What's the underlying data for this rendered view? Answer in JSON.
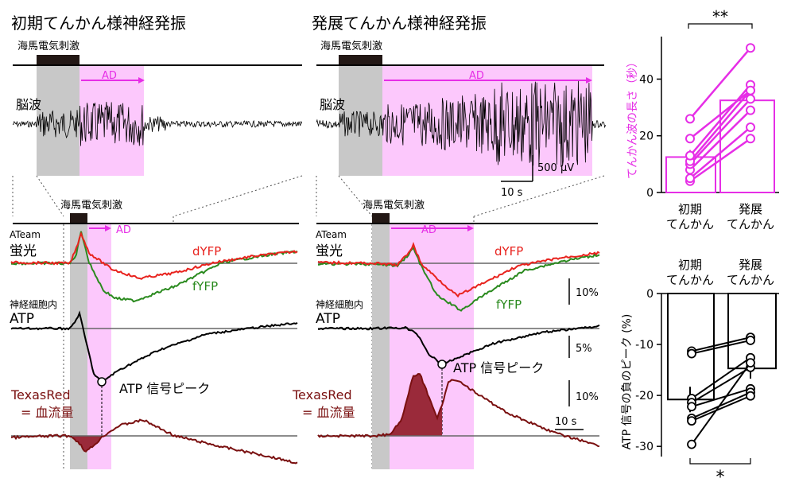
{
  "panels": {
    "early": {
      "title": "初期てんかん様神経発振",
      "stim_label": "海馬電気刺激",
      "ad_label": "AD",
      "eeg_label": "脳波",
      "zoom_stim_label": "海馬電気刺激",
      "zoom_ad_label": "AD",
      "ateam_label": "ATeam",
      "fluor_label": "蛍光",
      "dyfp_label": "dYFP",
      "fyfp_label": "fYFP",
      "neuron_label": "神経細胞内",
      "atp_label": "ATP",
      "atp_peak_label": "ATP 信号ピーク",
      "texasred_label": "TexasRed",
      "bloodflow_label": "= 血流量"
    },
    "late": {
      "title": "発展てんかん様神経発振",
      "stim_label": "海馬電気刺激",
      "ad_label": "AD",
      "eeg_label": "脳波",
      "zoom_stim_label": "海馬電気刺激",
      "zoom_ad_label": "AD",
      "ateam_label": "ATeam",
      "fluor_label": "蛍光",
      "dyfp_label": "dYFP",
      "fyfp_label": "fYFP",
      "neuron_label": "神経細胞内",
      "atp_label": "ATP",
      "atp_peak_label": "ATP 信号ピーク",
      "texasred_label": "TexasRed",
      "bloodflow_label": "= 血流量"
    }
  },
  "scalebars": {
    "eeg_voltage": "500 μV",
    "eeg_time": "10 s",
    "fluor_pct": "10%",
    "atp_pct": "5%",
    "texasred_pct": "10%",
    "zoom_time": "10 s"
  },
  "colors": {
    "magenta": "#e62ee6",
    "ad_shade": "#fcc8fc",
    "stim_shade": "#c8c8c8",
    "dyfp": "#e8231e",
    "fyfp": "#2a8a1e",
    "texasred": "#7a1010",
    "texasred_fill": "#9a2a3a"
  },
  "chart_data": [
    {
      "type": "bar",
      "ylabel": "てんかん波の長さ（秒）",
      "categories": [
        "初期\nてんかん",
        "発展\nてんかん"
      ],
      "category_lines": [
        [
          "初期",
          "てんかん"
        ],
        [
          "発展",
          "てんかん"
        ]
      ],
      "values": [
        12.5,
        32.5
      ],
      "error": [
        2.5,
        0
      ],
      "ylim": [
        0,
        55
      ],
      "yticks": [
        0,
        20,
        40
      ],
      "significance": "**",
      "paired_points": [
        [
          4,
          19
        ],
        [
          5,
          23
        ],
        [
          8,
          29
        ],
        [
          10,
          33
        ],
        [
          11,
          36
        ],
        [
          13,
          38
        ],
        [
          19,
          36
        ],
        [
          26,
          51
        ]
      ]
    },
    {
      "type": "bar",
      "ylabel": "ATP 信号の負のピーク (%)",
      "categories": [
        "初期\nてんかん",
        "発展\nてんかん"
      ],
      "category_lines": [
        [
          "初期",
          "てんかん"
        ],
        [
          "発展",
          "てんかん"
        ]
      ],
      "values": [
        -20.8,
        -14.7
      ],
      "error": [
        2.5,
        2.0
      ],
      "ylim": [
        -32,
        0
      ],
      "yticks": [
        0,
        -10,
        -20,
        -30
      ],
      "significance": "*",
      "paired_points": [
        [
          -11.3,
          -8.6
        ],
        [
          -11.8,
          -9.2
        ],
        [
          -20.6,
          -12.6
        ],
        [
          -21.4,
          -14.5
        ],
        [
          -22.2,
          -18.7
        ],
        [
          -24.5,
          -19.4
        ],
        [
          -25.0,
          -20.1
        ],
        [
          -29.6,
          -13.6
        ]
      ]
    }
  ]
}
